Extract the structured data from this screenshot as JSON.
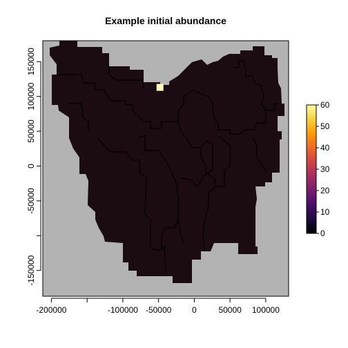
{
  "chart_data": {
    "type": "heatmap",
    "title": "Example initial abundance",
    "xlabel": "",
    "ylabel": "",
    "xlim": [
      -212000,
      132000
    ],
    "ylim": [
      -187000,
      180000
    ],
    "x_ticks": [
      {
        "value": -200000,
        "label": "-200000"
      },
      {
        "value": -150000,
        "label": ""
      },
      {
        "value": -100000,
        "label": "-100000"
      },
      {
        "value": -50000,
        "label": "-50000"
      },
      {
        "value": 0,
        "label": "0"
      },
      {
        "value": 50000,
        "label": "50000"
      },
      {
        "value": 100000,
        "label": "100000"
      }
    ],
    "y_ticks": [
      {
        "value": -150000,
        "label": "-150000"
      },
      {
        "value": -100000,
        "label": ""
      },
      {
        "value": -50000,
        "label": "-50000"
      },
      {
        "value": 0,
        "label": "0"
      },
      {
        "value": 50000,
        "label": "50000"
      },
      {
        "value": 100000,
        "label": "100000"
      },
      {
        "value": 150000,
        "label": "150000"
      }
    ],
    "background_color": "#b3b3b3",
    "land_color": "#1b0c12",
    "hotspot": {
      "x": -48000,
      "y": 113000,
      "value": 60,
      "color": "#fcfdbf"
    },
    "colorbar": {
      "min": 0,
      "max": 60,
      "ticks": [
        0,
        10,
        20,
        30,
        40,
        50,
        60
      ],
      "colors": [
        "#000004",
        "#1b0c41",
        "#4a0c6b",
        "#781c6d",
        "#a52c60",
        "#cf4446",
        "#ed6925",
        "#fb9b06",
        "#f7d13d",
        "#fcffa4"
      ]
    }
  }
}
